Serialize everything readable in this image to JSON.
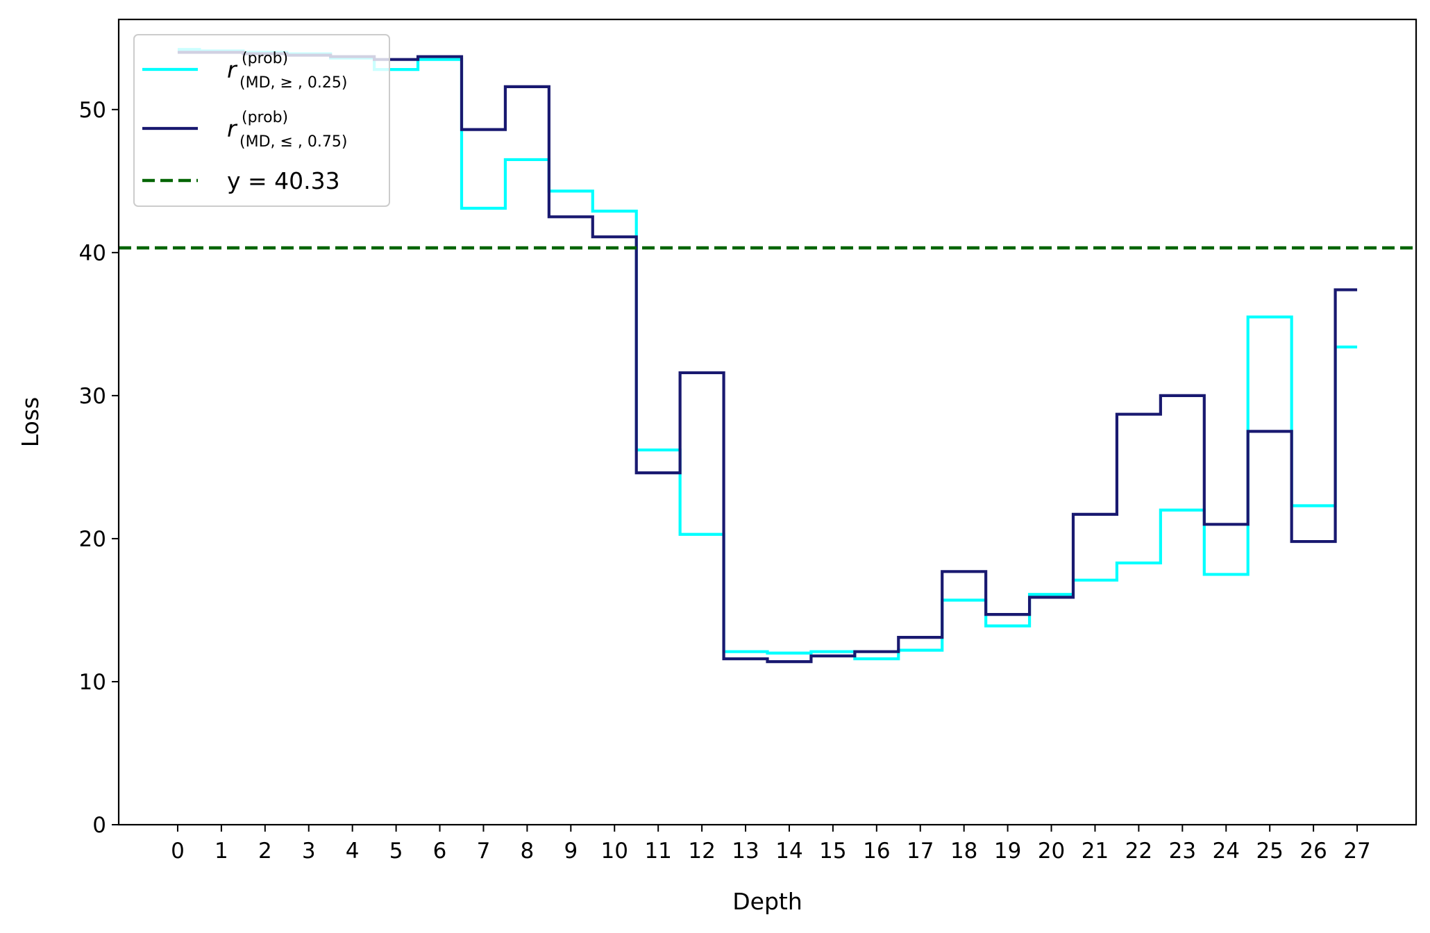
{
  "chart_data": {
    "type": "line",
    "step": "mid",
    "xlabel": "Depth",
    "ylabel": "Loss",
    "x": [
      0,
      1,
      2,
      3,
      4,
      5,
      6,
      7,
      8,
      9,
      10,
      11,
      12,
      13,
      14,
      15,
      16,
      17,
      18,
      19,
      20,
      21,
      22,
      23,
      24,
      25,
      26,
      27
    ],
    "xlim": [
      -1.35,
      28.35
    ],
    "ylim": [
      0,
      56.3
    ],
    "yticks": [
      0,
      10,
      20,
      30,
      40,
      50
    ],
    "grid": false,
    "legend_position": "upper-left",
    "series": [
      {
        "name_base": "r",
        "name_sup": "(prob)",
        "name_sub": "(MD, ≥ , 0.25)",
        "color": "#00ffff",
        "values": [
          54.2,
          54.1,
          54.0,
          53.9,
          53.6,
          52.8,
          53.5,
          43.1,
          46.5,
          44.3,
          42.9,
          26.2,
          20.3,
          12.1,
          12.0,
          12.1,
          11.6,
          12.2,
          15.7,
          13.9,
          16.1,
          17.1,
          18.3,
          22.0,
          17.5,
          35.5,
          22.3,
          33.4
        ]
      },
      {
        "name_base": "r",
        "name_sup": "(prob)",
        "name_sub": "(MD, ≤ , 0.75)",
        "color": "#191970",
        "values": [
          54.0,
          54.0,
          53.9,
          53.8,
          53.7,
          53.5,
          53.7,
          48.6,
          51.6,
          42.5,
          41.1,
          24.6,
          31.6,
          11.6,
          11.4,
          11.8,
          12.1,
          13.1,
          17.7,
          14.7,
          15.9,
          21.7,
          28.7,
          30.0,
          21.0,
          27.5,
          19.8,
          37.4
        ]
      }
    ],
    "reference_line": {
      "label": "y = 40.33",
      "y": 40.33,
      "color": "#006400",
      "style": "dashed"
    }
  }
}
